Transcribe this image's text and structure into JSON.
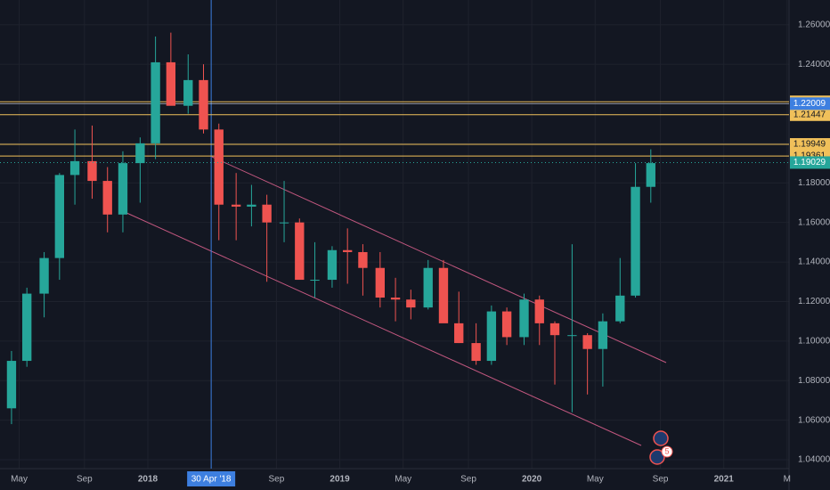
{
  "chart_data": {
    "type": "candlestick",
    "candles": {
      "x": [
        2017.29,
        2017.37,
        2017.46,
        2017.54,
        2017.62,
        2017.71,
        2017.79,
        2017.87,
        2017.96,
        2018.04,
        2018.12,
        2018.21,
        2018.29,
        2018.37,
        2018.46,
        2018.54,
        2018.62,
        2018.71,
        2018.79,
        2018.87,
        2018.96,
        2019.04,
        2019.12,
        2019.21,
        2019.29,
        2019.37,
        2019.46,
        2019.54,
        2019.62,
        2019.71,
        2019.79,
        2019.87,
        2019.96,
        2020.04,
        2020.12,
        2020.21,
        2020.29,
        2020.37,
        2020.46,
        2020.54,
        2020.62
      ],
      "open": [
        1.066,
        1.09,
        1.124,
        1.142,
        1.184,
        1.191,
        1.181,
        1.164,
        1.19,
        1.2,
        1.241,
        1.219,
        1.232,
        1.207,
        1.169,
        1.168,
        1.169,
        1.16,
        1.16,
        1.131,
        1.131,
        1.146,
        1.145,
        1.137,
        1.122,
        1.121,
        1.117,
        1.137,
        1.109,
        1.099,
        1.09,
        1.115,
        1.102,
        1.121,
        1.109,
        1.103,
        1.103,
        1.096,
        1.11,
        1.123,
        1.178
      ],
      "high": [
        1.095,
        1.127,
        1.145,
        1.185,
        1.207,
        1.209,
        1.188,
        1.196,
        1.203,
        1.254,
        1.256,
        1.245,
        1.24,
        1.21,
        1.185,
        1.179,
        1.174,
        1.181,
        1.162,
        1.15,
        1.148,
        1.157,
        1.149,
        1.145,
        1.132,
        1.126,
        1.141,
        1.141,
        1.125,
        1.109,
        1.118,
        1.117,
        1.124,
        1.123,
        1.11,
        1.149,
        1.104,
        1.114,
        1.142,
        1.19,
        1.197
      ],
      "low": [
        1.058,
        1.087,
        1.112,
        1.131,
        1.169,
        1.172,
        1.155,
        1.155,
        1.17,
        1.192,
        1.22,
        1.215,
        1.205,
        1.151,
        1.151,
        1.158,
        1.13,
        1.15,
        1.132,
        1.122,
        1.127,
        1.129,
        1.123,
        1.117,
        1.11,
        1.111,
        1.116,
        1.11,
        1.099,
        1.088,
        1.088,
        1.098,
        1.098,
        1.098,
        1.078,
        1.064,
        1.073,
        1.077,
        1.109,
        1.122,
        1.17
      ],
      "close": [
        1.09,
        1.124,
        1.142,
        1.184,
        1.191,
        1.181,
        1.164,
        1.19,
        1.2,
        1.241,
        1.219,
        1.232,
        1.207,
        1.169,
        1.168,
        1.169,
        1.16,
        1.16,
        1.131,
        1.131,
        1.146,
        1.145,
        1.137,
        1.122,
        1.121,
        1.117,
        1.137,
        1.109,
        1.099,
        1.09,
        1.115,
        1.102,
        1.121,
        1.109,
        1.103,
        1.103,
        1.096,
        1.11,
        1.123,
        1.178,
        1.19
      ]
    },
    "up_color": "#26a69a",
    "down_color": "#ef5350",
    "xlim": [
      2017.23,
      2021.34
    ],
    "xticks": [
      {
        "value": 2017.33,
        "label": "May"
      },
      {
        "value": 2017.67,
        "label": "Sep"
      },
      2018,
      {
        "value": 2018.67,
        "label": "Sep"
      },
      2019,
      {
        "value": 2019.33,
        "label": "May"
      },
      {
        "value": 2019.67,
        "label": "Sep"
      },
      2020,
      {
        "value": 2020.33,
        "label": "May"
      },
      {
        "value": 2020.67,
        "label": "Sep"
      },
      2021,
      {
        "value": 2021.33,
        "label": "M"
      }
    ],
    "ylim": [
      1.0355,
      1.2725
    ],
    "yticks": [
      {
        "value": 1.26,
        "label": "1.26000"
      },
      {
        "value": 1.24,
        "label": "1.24000"
      },
      {
        "value": 1.22,
        "label": "1.22000"
      },
      {
        "value": 1.2,
        "label": "1.20000"
      },
      {
        "value": 1.18,
        "label": "1.18000"
      },
      {
        "value": 1.16,
        "label": "1.16000"
      },
      {
        "value": 1.14,
        "label": "1.14000"
      },
      {
        "value": 1.12,
        "label": "1.12000"
      },
      {
        "value": 1.1,
        "label": "1.10000"
      },
      {
        "value": 1.08,
        "label": "1.08000"
      },
      {
        "value": 1.06,
        "label": "1.06000"
      },
      {
        "value": 1.04,
        "label": "1.04000"
      }
    ],
    "levels": [
      1.22102,
      1.21447,
      1.19949,
      1.19361
    ],
    "level_color": "#f0c05a",
    "crosshair": {
      "x": 2018.33,
      "label": "30 Apr '18",
      "price": 1.22009,
      "color": "#3d7fe0"
    },
    "last_price": 1.19029,
    "event_badge": 5,
    "grid": true
  }
}
